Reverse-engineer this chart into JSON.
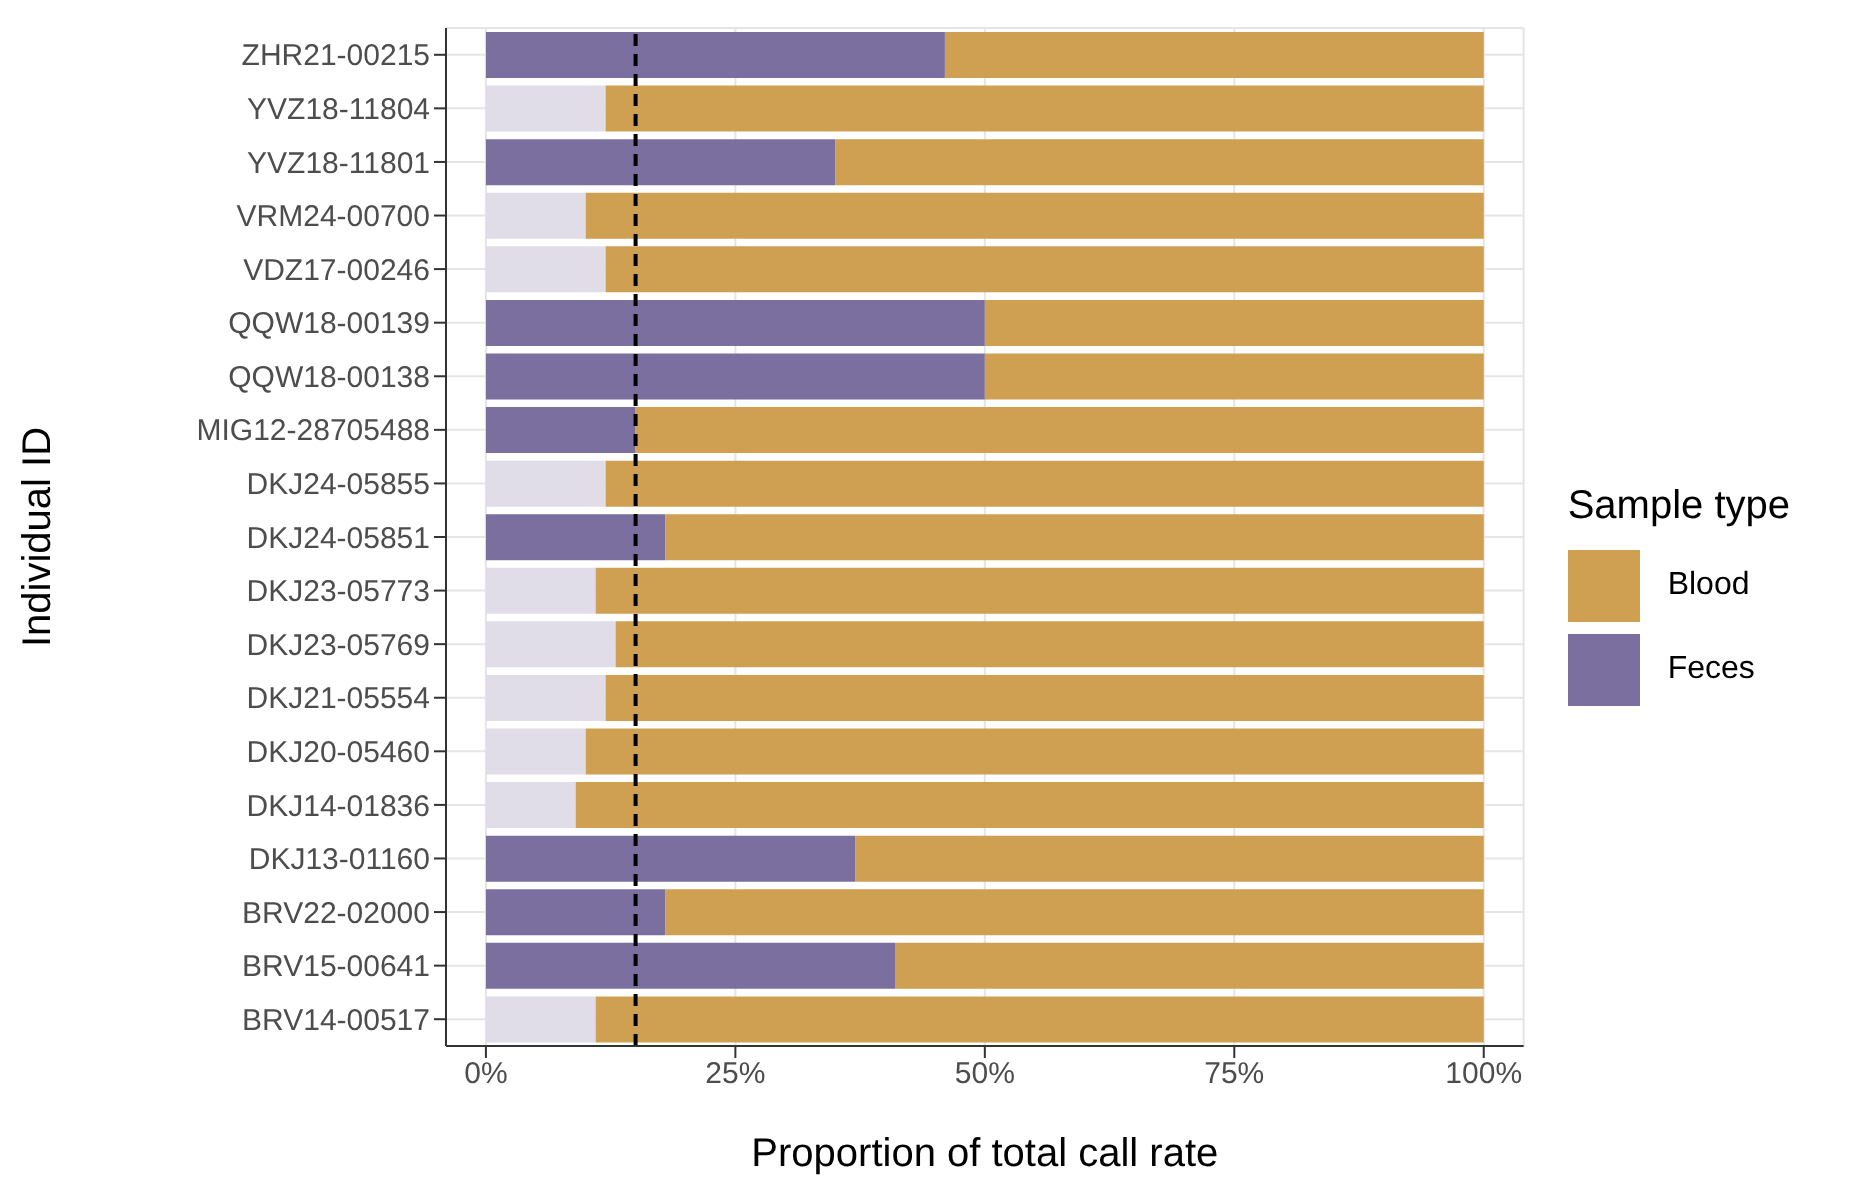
{
  "chart_data": {
    "type": "bar",
    "orientation": "horizontal",
    "stacked": true,
    "xlabel": "Proportion of total call rate",
    "ylabel": "Individual ID",
    "legend_title": "Sample type",
    "categories": [
      "ZHR21-00215",
      "YVZ18-11804",
      "YVZ18-11801",
      "VRM24-00700",
      "VDZ17-00246",
      "QQW18-00139",
      "QQW18-00138",
      "MIG12-28705488",
      "DKJ24-05855",
      "DKJ24-05851",
      "DKJ23-05773",
      "DKJ23-05769",
      "DKJ21-05554",
      "DKJ20-05460",
      "DKJ14-01836",
      "DKJ13-01160",
      "BRV22-02000",
      "BRV15-00641",
      "BRV14-00517"
    ],
    "series": [
      {
        "name": "Feces",
        "color": "#7b6fa0",
        "colors": [
          "#7b6fa0",
          "#e0dde8",
          "#7b6fa0",
          "#e0dde8",
          "#e0dde8",
          "#7b6fa0",
          "#7b6fa0",
          "#7b6fa0",
          "#e0dde8",
          "#7b6fa0",
          "#e0dde8",
          "#e0dde8",
          "#e0dde8",
          "#e0dde8",
          "#e0dde8",
          "#7b6fa0",
          "#7b6fa0",
          "#7b6fa0",
          "#e0dde8"
        ],
        "values": [
          46,
          12,
          35,
          10,
          12,
          50,
          50,
          15,
          12,
          18,
          11,
          13,
          12,
          10,
          9,
          37,
          18,
          41,
          11
        ]
      },
      {
        "name": "Blood",
        "color": "#cf9f52",
        "values": [
          54,
          88,
          65,
          90,
          88,
          50,
          50,
          85,
          88,
          82,
          89,
          87,
          88,
          90,
          91,
          63,
          82,
          59,
          89
        ]
      }
    ],
    "xlim": [
      -4,
      104
    ],
    "xticks": [
      {
        "value": 0,
        "label": "0%"
      },
      {
        "value": 25,
        "label": "25%"
      },
      {
        "value": 50,
        "label": "50%"
      },
      {
        "value": 75,
        "label": "75%"
      },
      {
        "value": 100,
        "label": "100%"
      }
    ],
    "ref_lines": [
      {
        "axis": "x",
        "value": 15,
        "line_style": "dashed",
        "color": "#000000"
      }
    ],
    "grid": true,
    "legend": "right"
  }
}
